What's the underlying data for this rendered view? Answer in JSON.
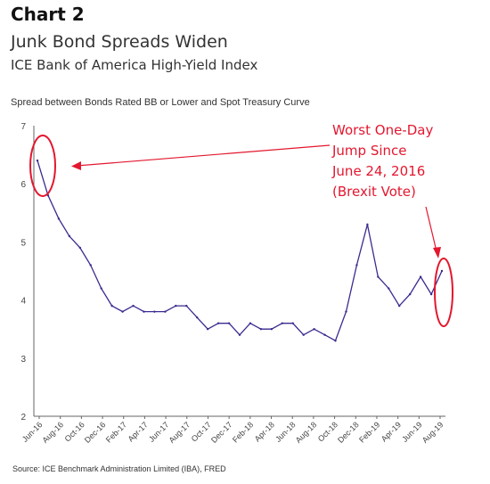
{
  "chart_label": "Chart 2",
  "title": "Junk Bond Spreads Widen",
  "subtitle": "ICE Bank of America High-Yield Index",
  "ylabel": "Spread between Bonds Rated BB or Lower and Spot Treasury Curve",
  "source": "Source: ICE Benchmark Administration Limited (IBA), FRED",
  "annotation": [
    "Worst One-Day",
    "Jump Since",
    "June 24, 2016",
    "(Brexit Vote)"
  ],
  "colors": {
    "line": "#3b2a8f",
    "highlight": "#e3172f",
    "axis": "#666666"
  },
  "chart_data": {
    "type": "line",
    "ylim": [
      2,
      7
    ],
    "yticks": [
      2,
      3,
      4,
      5,
      6,
      7
    ],
    "xticks": [
      "Jun-16",
      "Aug-16",
      "Oct-16",
      "Dec-16",
      "Feb-17",
      "Apr-17",
      "Jun-17",
      "Aug-17",
      "Oct-17",
      "Dec-17",
      "Feb-18",
      "Apr-18",
      "Jun-18",
      "Aug-18",
      "Oct-18",
      "Dec-18",
      "Feb-19",
      "Apr-19",
      "Jun-19",
      "Aug-19"
    ],
    "x": [
      "2016-06",
      "2016-07",
      "2016-08",
      "2016-09",
      "2016-10",
      "2016-11",
      "2016-12",
      "2017-01",
      "2017-02",
      "2017-03",
      "2017-04",
      "2017-05",
      "2017-06",
      "2017-07",
      "2017-08",
      "2017-09",
      "2017-10",
      "2017-11",
      "2017-12",
      "2018-01",
      "2018-02",
      "2018-03",
      "2018-04",
      "2018-05",
      "2018-06",
      "2018-07",
      "2018-08",
      "2018-09",
      "2018-10",
      "2018-11",
      "2018-12",
      "2019-01",
      "2019-02",
      "2019-03",
      "2019-04",
      "2019-05",
      "2019-06",
      "2019-07",
      "2019-08"
    ],
    "values": [
      6.4,
      5.8,
      5.4,
      5.1,
      4.9,
      4.6,
      4.2,
      3.9,
      3.8,
      3.9,
      3.8,
      3.8,
      3.8,
      3.9,
      3.9,
      3.7,
      3.5,
      3.6,
      3.6,
      3.4,
      3.6,
      3.5,
      3.5,
      3.6,
      3.6,
      3.4,
      3.5,
      3.4,
      3.3,
      3.8,
      4.6,
      5.3,
      4.4,
      4.2,
      3.9,
      4.1,
      4.4,
      4.1,
      4.5
    ],
    "grid": false
  }
}
